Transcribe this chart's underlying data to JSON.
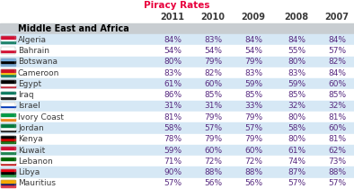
{
  "title": "Piracy Rates",
  "title_color": "#e8003d",
  "columns": [
    "2011",
    "2010",
    "2009",
    "2008",
    "2007"
  ],
  "section_header": "Middle East and Africa",
  "countries": [
    "Algeria",
    "Bahrain",
    "Botswana",
    "Cameroon",
    "Egypt",
    "Iraq",
    "Israel",
    "Ivory Coast",
    "Jordan",
    "Kenya",
    "Kuwait",
    "Lebanon",
    "Libya",
    "Mauritius"
  ],
  "data": [
    [
      84,
      83,
      84,
      84,
      84
    ],
    [
      54,
      54,
      54,
      55,
      57
    ],
    [
      80,
      79,
      79,
      80,
      82
    ],
    [
      83,
      82,
      83,
      83,
      84
    ],
    [
      61,
      60,
      59,
      59,
      60
    ],
    [
      86,
      85,
      85,
      85,
      85
    ],
    [
      31,
      31,
      33,
      32,
      32
    ],
    [
      81,
      79,
      79,
      80,
      81
    ],
    [
      58,
      57,
      57,
      58,
      60
    ],
    [
      78,
      79,
      79,
      80,
      81
    ],
    [
      59,
      60,
      60,
      61,
      62
    ],
    [
      71,
      72,
      72,
      74,
      73
    ],
    [
      90,
      88,
      88,
      87,
      88
    ],
    [
      57,
      56,
      56,
      57,
      57
    ]
  ],
  "row_bg_even": "#d6e8f5",
  "row_bg_odd": "#ffffff",
  "section_bg": "#c8cdd1",
  "col_header_bg": "#ffffff",
  "text_color": "#3a3a3a",
  "value_color": "#5a2d82",
  "title_fontsize": 7.5,
  "header_fontsize": 7.0,
  "data_fontsize": 6.5,
  "flag_colors": [
    [
      "#007a5e",
      "#ffffff",
      "#d21034"
    ],
    [
      "#ffffff",
      "#d21034",
      "#ffffff"
    ],
    [
      "#75aadb",
      "#000000",
      "#75aadb"
    ],
    [
      "#007a5e",
      "#fcd116",
      "#ce1126"
    ],
    [
      "#ce1126",
      "#ffffff",
      "#000000"
    ],
    [
      "#000000",
      "#ffffff",
      "#007a5e"
    ],
    [
      "#ffffff",
      "#0038b8",
      "#ffffff"
    ],
    [
      "#f77f00",
      "#ffffff",
      "#009a44"
    ],
    [
      "#000000",
      "#ffffff",
      "#007a3d"
    ],
    [
      "#006600",
      "#cc0001",
      "#000000"
    ],
    [
      "#007a3d",
      "#ffffff",
      "#d21034"
    ],
    [
      "#cc0001",
      "#ffffff",
      "#006600"
    ],
    [
      "#239e46",
      "#000000",
      "#e70013"
    ],
    [
      "#ea2839",
      "#1a206d",
      "#f6a800"
    ]
  ]
}
